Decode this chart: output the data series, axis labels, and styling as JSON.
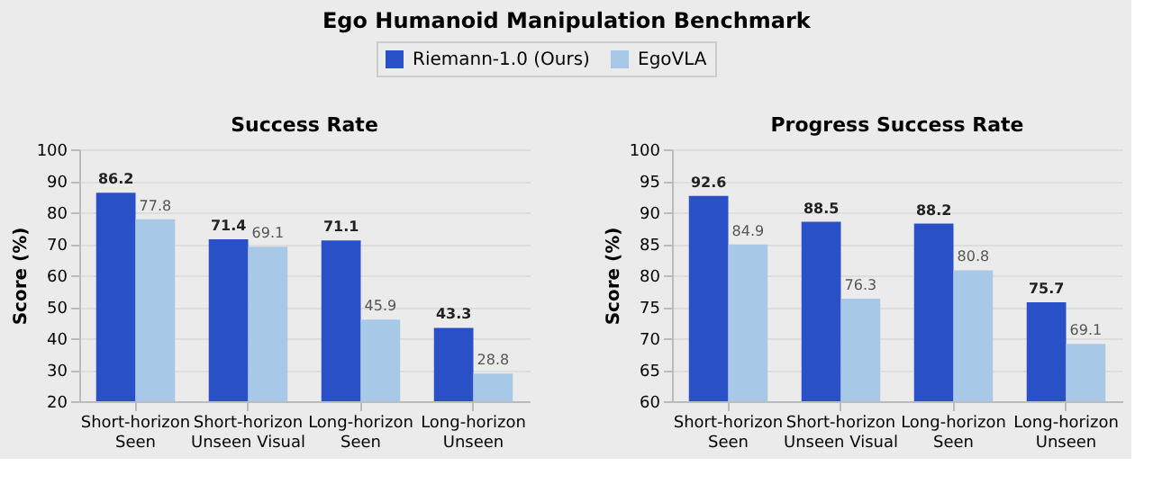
{
  "chart_data": [
    {
      "type": "bar",
      "title": "Success Rate",
      "ylabel": "Score (%)",
      "annotations": [
        "Ego Humanoid Manipulation Benchmark"
      ],
      "categories": [
        "Short-horizon Seen",
        "Short-horizon Unseen Visual",
        "Long-horizon Seen",
        "Long-horizon Unseen"
      ],
      "series": [
        {
          "name": "Riemann-1.0 (Ours)",
          "color": "#2a50c8",
          "values": [
            86.2,
            71.4,
            71.1,
            43.3
          ]
        },
        {
          "name": "EgoVLA",
          "color": "#a8c8e8",
          "values": [
            77.8,
            69.1,
            45.9,
            28.8
          ]
        }
      ],
      "ylim": [
        20,
        100
      ],
      "yticks": [
        20,
        30,
        40,
        50,
        60,
        70,
        80,
        90,
        100
      ],
      "grid": "y",
      "data_labels": true,
      "legend": "top"
    },
    {
      "type": "bar",
      "title": "Progress Success Rate",
      "ylabel": "Score (%)",
      "categories": [
        "Short-horizon Seen",
        "Short-horizon Unseen Visual",
        "Long-horizon Seen",
        "Long-horizon Unseen"
      ],
      "series": [
        {
          "name": "Riemann-1.0 (Ours)",
          "color": "#2a50c8",
          "values": [
            92.6,
            88.5,
            88.2,
            75.7
          ]
        },
        {
          "name": "EgoVLA",
          "color": "#a8c8e8",
          "values": [
            84.9,
            76.3,
            80.8,
            69.1
          ]
        }
      ],
      "ylim": [
        60,
        100
      ],
      "yticks": [
        60,
        65,
        70,
        75,
        80,
        85,
        90,
        95,
        100
      ],
      "grid": "y",
      "data_labels": true,
      "legend": "top"
    }
  ]
}
